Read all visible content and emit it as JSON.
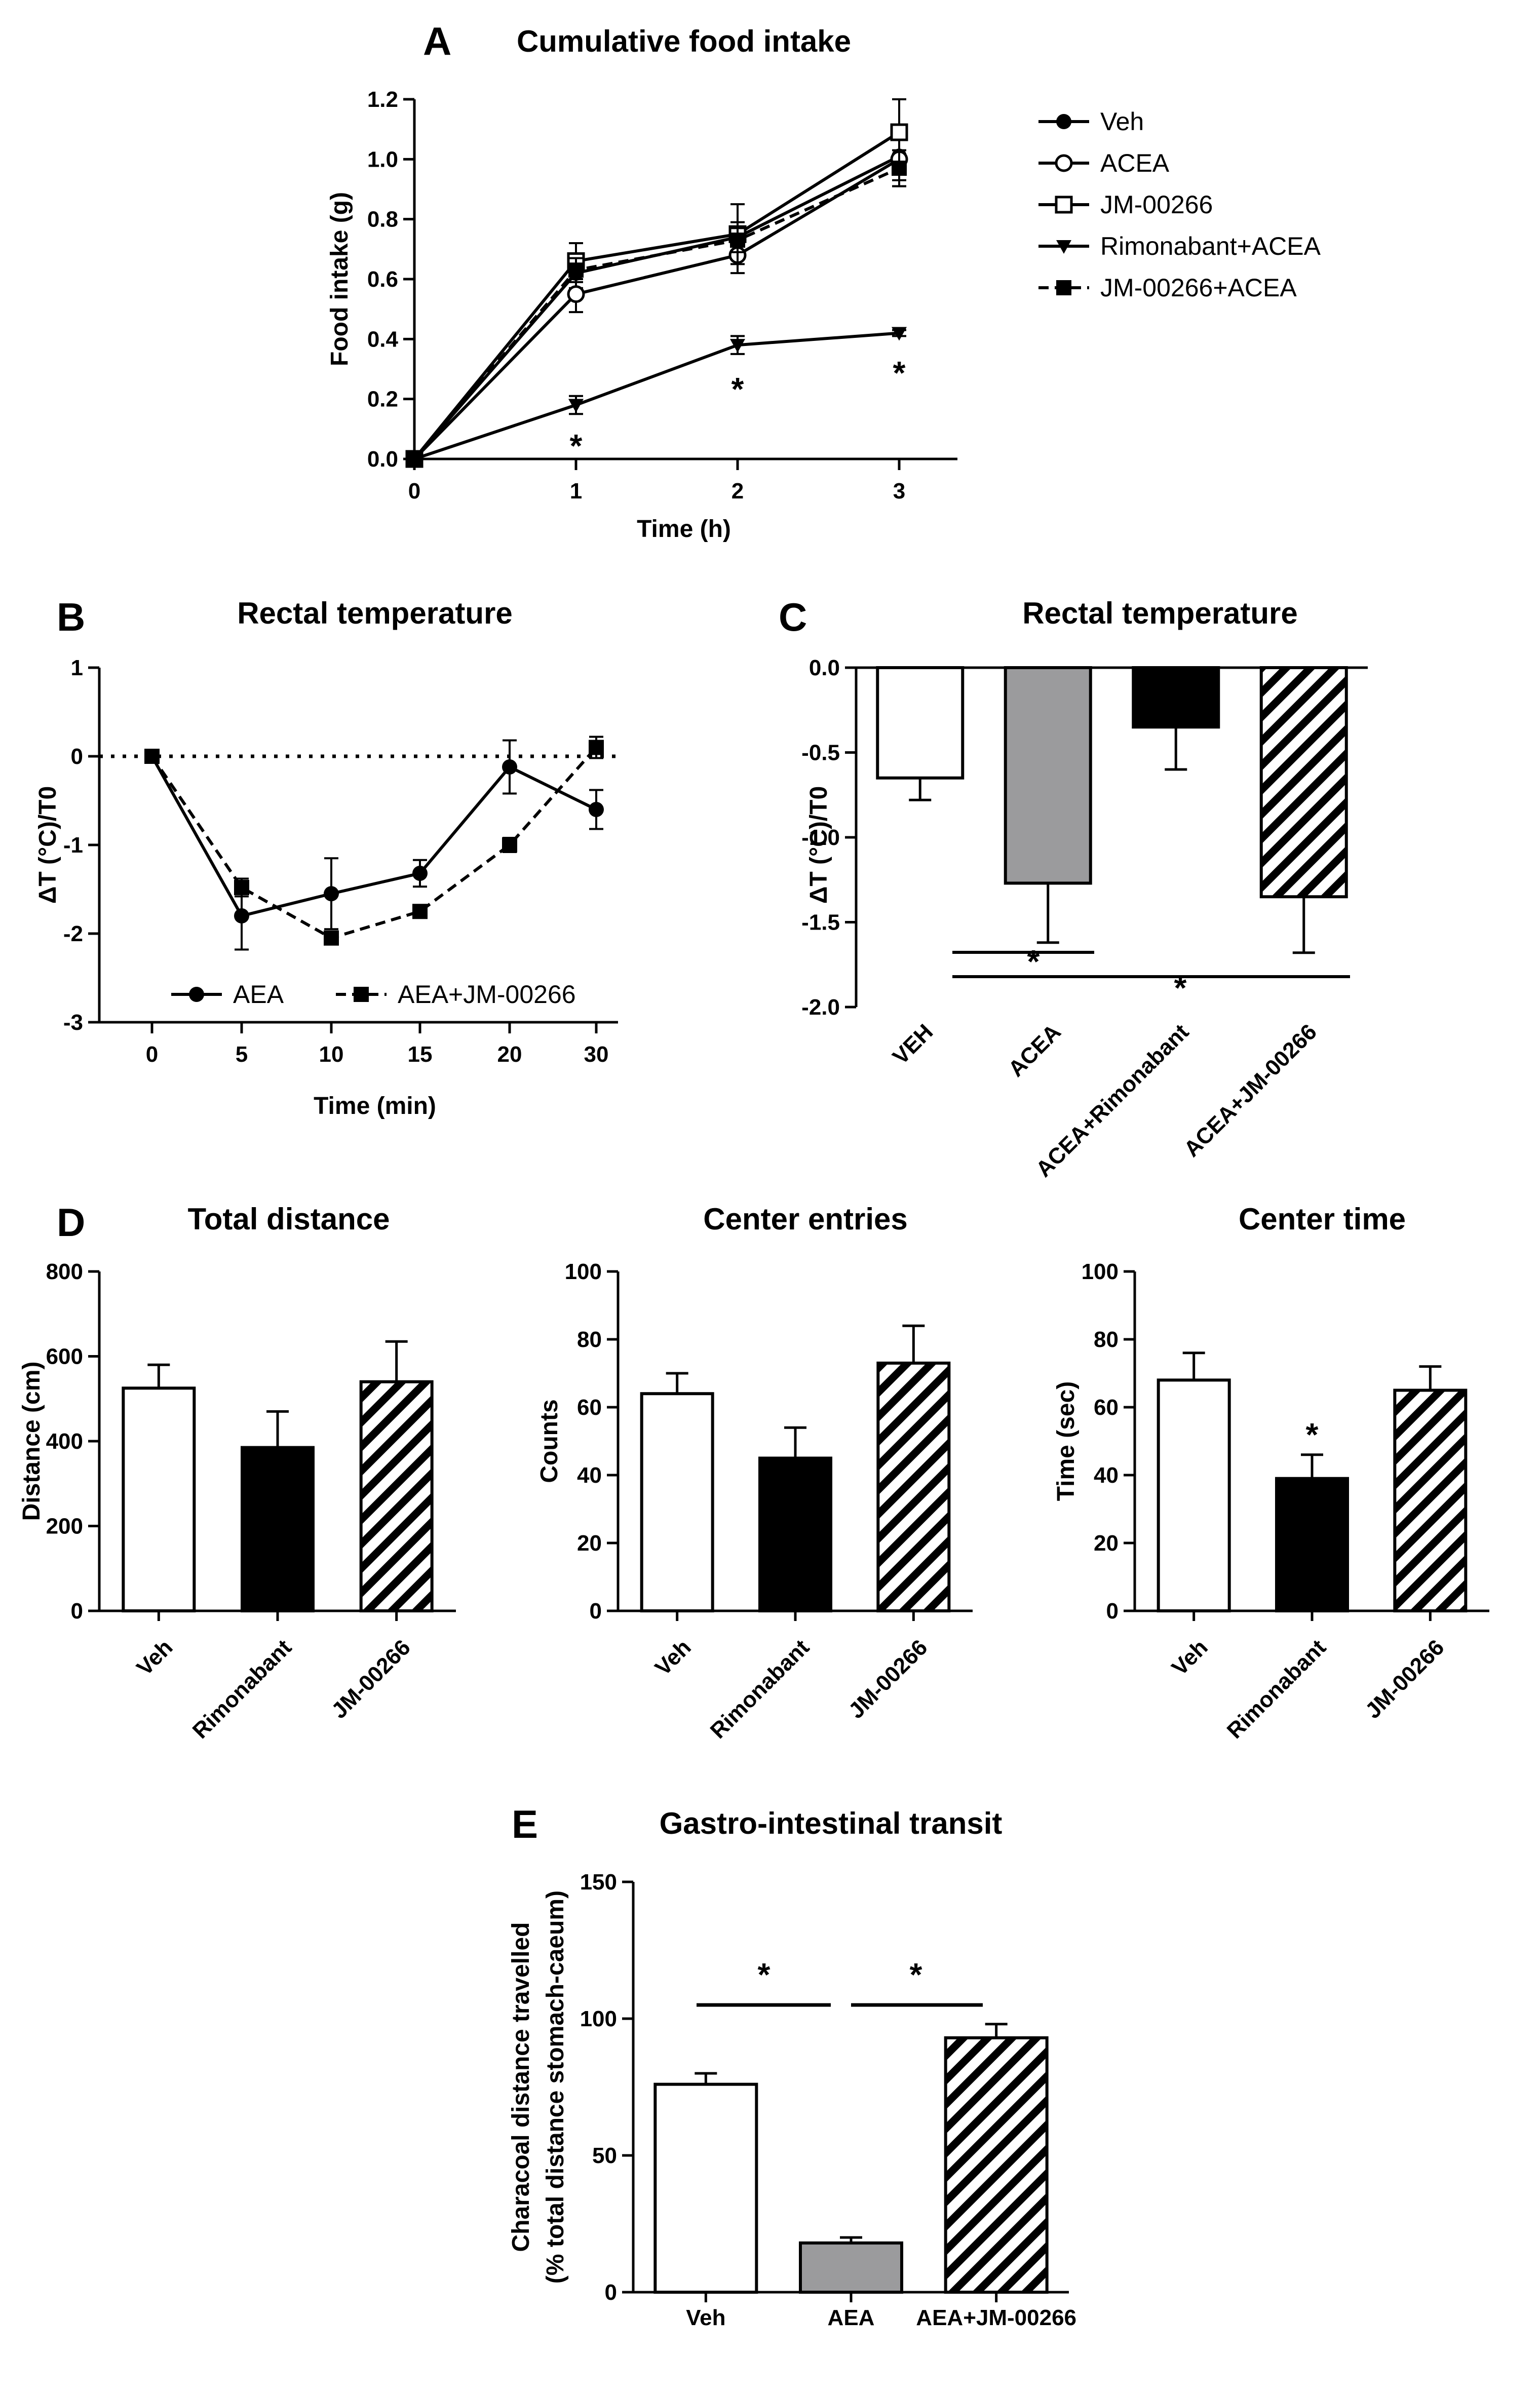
{
  "chart_data": [
    {
      "panel": "A",
      "type": "line",
      "title": "Cumulative food intake",
      "xlabel": "Time (h)",
      "ylabel": "Food intake (g)",
      "x": [
        0,
        1,
        2,
        3
      ],
      "xticks": [
        "0",
        "1",
        "2",
        "3"
      ],
      "ylim": [
        0,
        1.2
      ],
      "yticks": [
        "0.0",
        "0.2",
        "0.4",
        "0.6",
        "0.8",
        "1.0",
        "1.2"
      ],
      "series": [
        {
          "name": "Veh",
          "marker": "circle-filled",
          "dash": false,
          "values": [
            0,
            0.62,
            0.74,
            1.01
          ],
          "err": [
            0,
            0.05,
            0.05,
            0.08
          ]
        },
        {
          "name": "ACEA",
          "marker": "circle-open",
          "dash": false,
          "values": [
            0,
            0.55,
            0.68,
            1.0
          ],
          "err": [
            0,
            0.06,
            0.06,
            0.09
          ]
        },
        {
          "name": "JM-00266",
          "marker": "square-open",
          "dash": false,
          "values": [
            0,
            0.66,
            0.75,
            1.09
          ],
          "err": [
            0,
            0.06,
            0.1,
            0.11
          ]
        },
        {
          "name": "Rimonabant+ACEA",
          "marker": "triangle-down",
          "dash": false,
          "values": [
            0,
            0.18,
            0.38,
            0.42
          ],
          "err": [
            0,
            0.03,
            0.03,
            0.01
          ]
        },
        {
          "name": "JM-00266+ACEA",
          "marker": "square-filled",
          "dash": true,
          "values": [
            0,
            0.63,
            0.73,
            0.97
          ],
          "err": [
            0,
            0.04,
            0.04,
            0.06
          ]
        }
      ],
      "annotations": [
        "*",
        "*",
        "*"
      ]
    },
    {
      "panel": "B",
      "type": "line",
      "title": "Rectal temperature",
      "xlabel": "Time (min)",
      "ylabel": "ΔT (°C)/T0",
      "xticks": [
        "0",
        "5",
        "10",
        "15",
        "20",
        "30"
      ],
      "ylim": [
        -3,
        1
      ],
      "yticks": [
        "-3",
        "-2",
        "-1",
        "0",
        "1"
      ],
      "series": [
        {
          "name": "AEA",
          "marker": "circle-filled",
          "dash": false,
          "values": [
            0,
            -1.8,
            -1.55,
            -1.32,
            -0.12,
            -0.6
          ],
          "err": [
            0,
            0.38,
            0.4,
            0.15,
            0.3,
            0.22
          ]
        },
        {
          "name": "AEA+JM-00266",
          "marker": "square-filled",
          "dash": true,
          "values": [
            0,
            -1.48,
            -2.05,
            -1.75,
            -1.0,
            0.1
          ],
          "err": [
            0,
            0.1,
            0.05,
            0.05,
            0.08,
            0.12
          ]
        }
      ]
    },
    {
      "panel": "C",
      "type": "bar",
      "title": "Rectal temperature",
      "ylabel": "ΔT (°C)/T0",
      "categories": [
        "VEH",
        "ACEA",
        "ACEA+Rimonabant",
        "ACEA+JM-00266"
      ],
      "values": [
        -0.65,
        -1.27,
        -0.35,
        -1.35
      ],
      "err": [
        0.13,
        0.35,
        0.25,
        0.33
      ],
      "fills": [
        "white",
        "gray",
        "black",
        "hatch"
      ],
      "ylim": [
        -2.0,
        0.0
      ],
      "yticks": [
        "0.0",
        "-0.5",
        "-1.0",
        "-1.5",
        "-2.0"
      ],
      "annotations": [
        "*",
        "*"
      ]
    },
    {
      "panel": "D",
      "type": "bar",
      "title": "Total distance",
      "ylabel": "Distance (cm)",
      "categories": [
        "Veh",
        "Rimonabant",
        "JM-00266"
      ],
      "values": [
        525,
        385,
        540
      ],
      "err": [
        55,
        85,
        95
      ],
      "fills": [
        "white",
        "black",
        "hatch"
      ],
      "ylim": [
        0,
        800
      ],
      "yticks": [
        "0",
        "200",
        "400",
        "600",
        "800"
      ]
    },
    {
      "panel": "D",
      "type": "bar",
      "title": "Center entries",
      "ylabel": "Counts",
      "categories": [
        "Veh",
        "Rimonabant",
        "JM-00266"
      ],
      "values": [
        64,
        45,
        73
      ],
      "err": [
        6,
        9,
        11
      ],
      "fills": [
        "white",
        "black",
        "hatch"
      ],
      "ylim": [
        0,
        100
      ],
      "yticks": [
        "0",
        "20",
        "40",
        "60",
        "80",
        "100"
      ]
    },
    {
      "panel": "D",
      "type": "bar",
      "title": "Center time",
      "ylabel": "Time (sec)",
      "categories": [
        "Veh",
        "Rimonabant",
        "JM-00266"
      ],
      "values": [
        68,
        39,
        65
      ],
      "err": [
        8,
        7,
        7
      ],
      "fills": [
        "white",
        "black",
        "hatch"
      ],
      "ylim": [
        0,
        100
      ],
      "yticks": [
        "0",
        "20",
        "40",
        "60",
        "80",
        "100"
      ],
      "annotations": [
        "*"
      ]
    },
    {
      "panel": "E",
      "type": "bar",
      "title": "Gastro-intestinal transit",
      "ylabel": "Characoal distance travelled",
      "ylabel2": "(% total distance stomach-caeum)",
      "categories": [
        "Veh",
        "AEA",
        "AEA+JM-00266"
      ],
      "values": [
        76,
        18,
        93
      ],
      "err": [
        4,
        2,
        5
      ],
      "fills": [
        "white",
        "gray",
        "hatch"
      ],
      "ylim": [
        0,
        150
      ],
      "yticks": [
        "0",
        "50",
        "100",
        "150"
      ],
      "annotations": [
        "*",
        "*"
      ]
    }
  ]
}
